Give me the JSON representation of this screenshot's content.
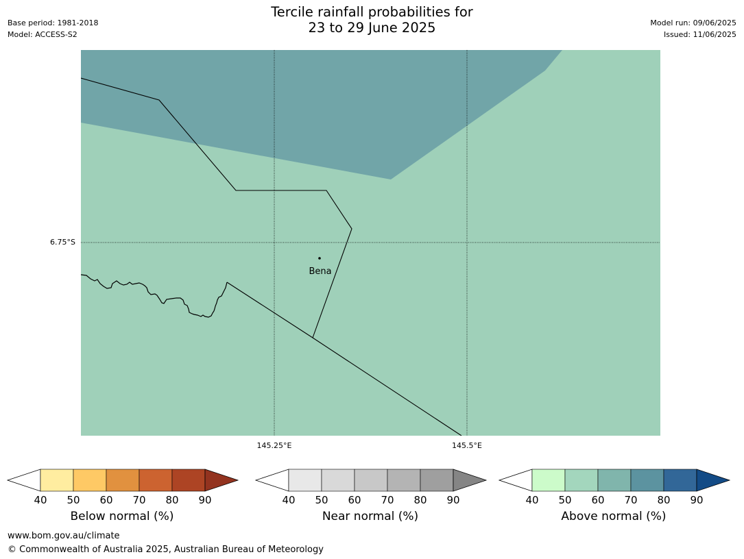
{
  "header": {
    "title_line1": "Tercile rainfall probabilities for",
    "title_line2": "23 to 29 June 2025",
    "base_period": "Base period: 1981-2018",
    "model": "Model: ACCESS-S2",
    "model_run": "Model run: 09/06/2025",
    "issued": "Issued: 11/06/2025"
  },
  "map": {
    "place_label": "Bena",
    "lat_label": "6.75°S",
    "lon_labels": [
      "145.25°E",
      "145.5°E"
    ],
    "colors": {
      "above_50_60": "#9fd0b9",
      "above_60_70": "#71a5a8"
    }
  },
  "colorbars": [
    {
      "name": "below",
      "label": "Below normal (%)",
      "ticks": [
        "40",
        "50",
        "60",
        "70",
        "80",
        "90"
      ],
      "colors": [
        "#ffffff",
        "#ffeda0",
        "#fec965",
        "#e1913f",
        "#cc6330",
        "#ad4424",
        "#93331f"
      ]
    },
    {
      "name": "near",
      "label": "Near normal (%)",
      "ticks": [
        "40",
        "50",
        "60",
        "70",
        "80",
        "90"
      ],
      "colors": [
        "#ffffff",
        "#e8e8e8",
        "#d9d9d9",
        "#c8c8c8",
        "#b4b4b4",
        "#9f9f9f",
        "#858585"
      ]
    },
    {
      "name": "above",
      "label": "Above normal (%)",
      "ticks": [
        "40",
        "50",
        "60",
        "70",
        "80",
        "90"
      ],
      "colors": [
        "#ffffff",
        "#ccfbca",
        "#a3d6bd",
        "#80b5ac",
        "#5c93a0",
        "#326798",
        "#134b86"
      ]
    }
  ],
  "footer": {
    "url": "www.bom.gov.au/climate",
    "copyright": "© Commonwealth of Australia 2025, Australian Bureau of Meteorology"
  }
}
